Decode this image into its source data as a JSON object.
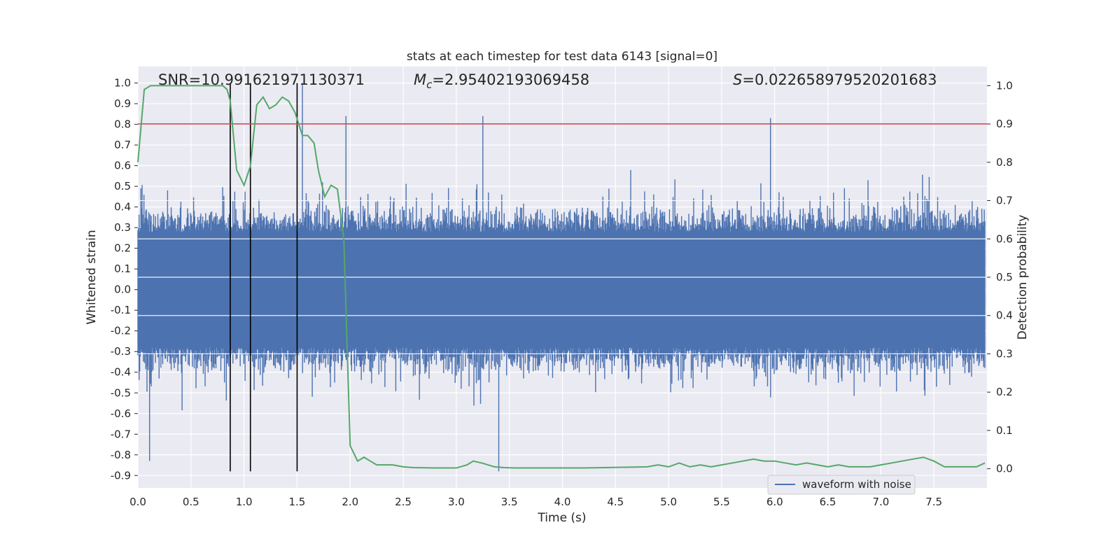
{
  "chart_data": {
    "type": "line",
    "title": "stats at each timestep for test data 6143 [signal=0]",
    "xlabel": "Time (s)",
    "ylabel": "Whitened strain",
    "ylabel_right": "Detection probability",
    "xlim": [
      0.0,
      8.0
    ],
    "ylim": [
      -0.96,
      1.08
    ],
    "ylim_right": [
      -0.05,
      1.05
    ],
    "x_ticks": [
      "0.0",
      "0.5",
      "1.0",
      "1.5",
      "2.0",
      "2.5",
      "3.0",
      "3.5",
      "4.0",
      "4.5",
      "5.0",
      "5.5",
      "6.0",
      "6.5",
      "7.0",
      "7.5"
    ],
    "y_ticks": [
      "-0.9",
      "-0.8",
      "-0.7",
      "-0.6",
      "-0.5",
      "-0.4",
      "-0.3",
      "-0.2",
      "-0.1",
      "0.0",
      "0.1",
      "0.2",
      "0.3",
      "0.4",
      "0.5",
      "0.6",
      "0.7",
      "0.8",
      "0.9",
      "1.0"
    ],
    "y_ticks_right": [
      "0.0",
      "0.1",
      "0.2",
      "0.3",
      "0.4",
      "0.5",
      "0.6",
      "0.7",
      "0.8",
      "0.9",
      "1.0"
    ],
    "grid": true,
    "legend": {
      "location": "lower right",
      "entries": [
        "waveform with noise"
      ]
    },
    "annotations": {
      "snr": "SNR=10.991621971130371",
      "mc_symbol": "M",
      "mc_sub": "c",
      "mc_value": "=2.95402193069458",
      "s_symbol": "S",
      "s_value": "=0.022658979520201683"
    },
    "threshold_right": 0.9,
    "vertical_lines_x": [
      0.87,
      1.06,
      1.5
    ],
    "series": [
      {
        "name": "waveform with noise",
        "axis": "left",
        "color": "#4c72b0",
        "description_range": [
          -0.88,
          1.0
        ],
        "peaks_x": [
          0.11,
          0.87,
          1.55,
          1.96,
          3.25,
          3.4,
          5.96
        ],
        "peaks_y": [
          -0.83,
          0.5,
          1.0,
          0.84,
          0.84,
          -0.88,
          0.83
        ]
      },
      {
        "name": "",
        "axis": "right",
        "color": "#55a868",
        "x": [
          0.0,
          0.06,
          0.12,
          0.2,
          0.3,
          0.4,
          0.5,
          0.6,
          0.7,
          0.8,
          0.84,
          0.87,
          0.93,
          1.0,
          1.06,
          1.12,
          1.18,
          1.24,
          1.3,
          1.36,
          1.42,
          1.48,
          1.55,
          1.6,
          1.66,
          1.7,
          1.76,
          1.82,
          1.88,
          1.94,
          2.0,
          2.07,
          2.13,
          2.19,
          2.25,
          2.32,
          2.4,
          2.5,
          2.6,
          2.8,
          3.0,
          3.1,
          3.16,
          3.24,
          3.3,
          3.36,
          3.45,
          3.55,
          3.7,
          4.0,
          4.2,
          4.4,
          4.6,
          4.8,
          4.9,
          5.0,
          5.1,
          5.2,
          5.3,
          5.4,
          5.5,
          5.6,
          5.7,
          5.8,
          5.9,
          6.0,
          6.1,
          6.2,
          6.3,
          6.4,
          6.5,
          6.6,
          6.7,
          6.8,
          6.9,
          7.0,
          7.1,
          7.2,
          7.3,
          7.4,
          7.5,
          7.6,
          7.7,
          7.8,
          7.9,
          7.98
        ],
        "y": [
          0.8,
          0.99,
          1.0,
          1.0,
          1.0,
          1.0,
          1.0,
          1.0,
          1.0,
          1.0,
          0.99,
          0.96,
          0.78,
          0.74,
          0.79,
          0.95,
          0.97,
          0.94,
          0.95,
          0.97,
          0.96,
          0.93,
          0.87,
          0.87,
          0.85,
          0.78,
          0.71,
          0.74,
          0.73,
          0.6,
          0.06,
          0.02,
          0.03,
          0.02,
          0.01,
          0.01,
          0.01,
          0.005,
          0.003,
          0.002,
          0.002,
          0.01,
          0.02,
          0.015,
          0.01,
          0.005,
          0.003,
          0.002,
          0.002,
          0.002,
          0.002,
          0.003,
          0.004,
          0.005,
          0.01,
          0.005,
          0.015,
          0.005,
          0.01,
          0.005,
          0.01,
          0.015,
          0.02,
          0.025,
          0.02,
          0.02,
          0.015,
          0.01,
          0.015,
          0.01,
          0.005,
          0.01,
          0.005,
          0.005,
          0.005,
          0.01,
          0.015,
          0.02,
          0.025,
          0.03,
          0.02,
          0.005,
          0.005,
          0.005,
          0.005,
          0.015
        ]
      }
    ]
  }
}
